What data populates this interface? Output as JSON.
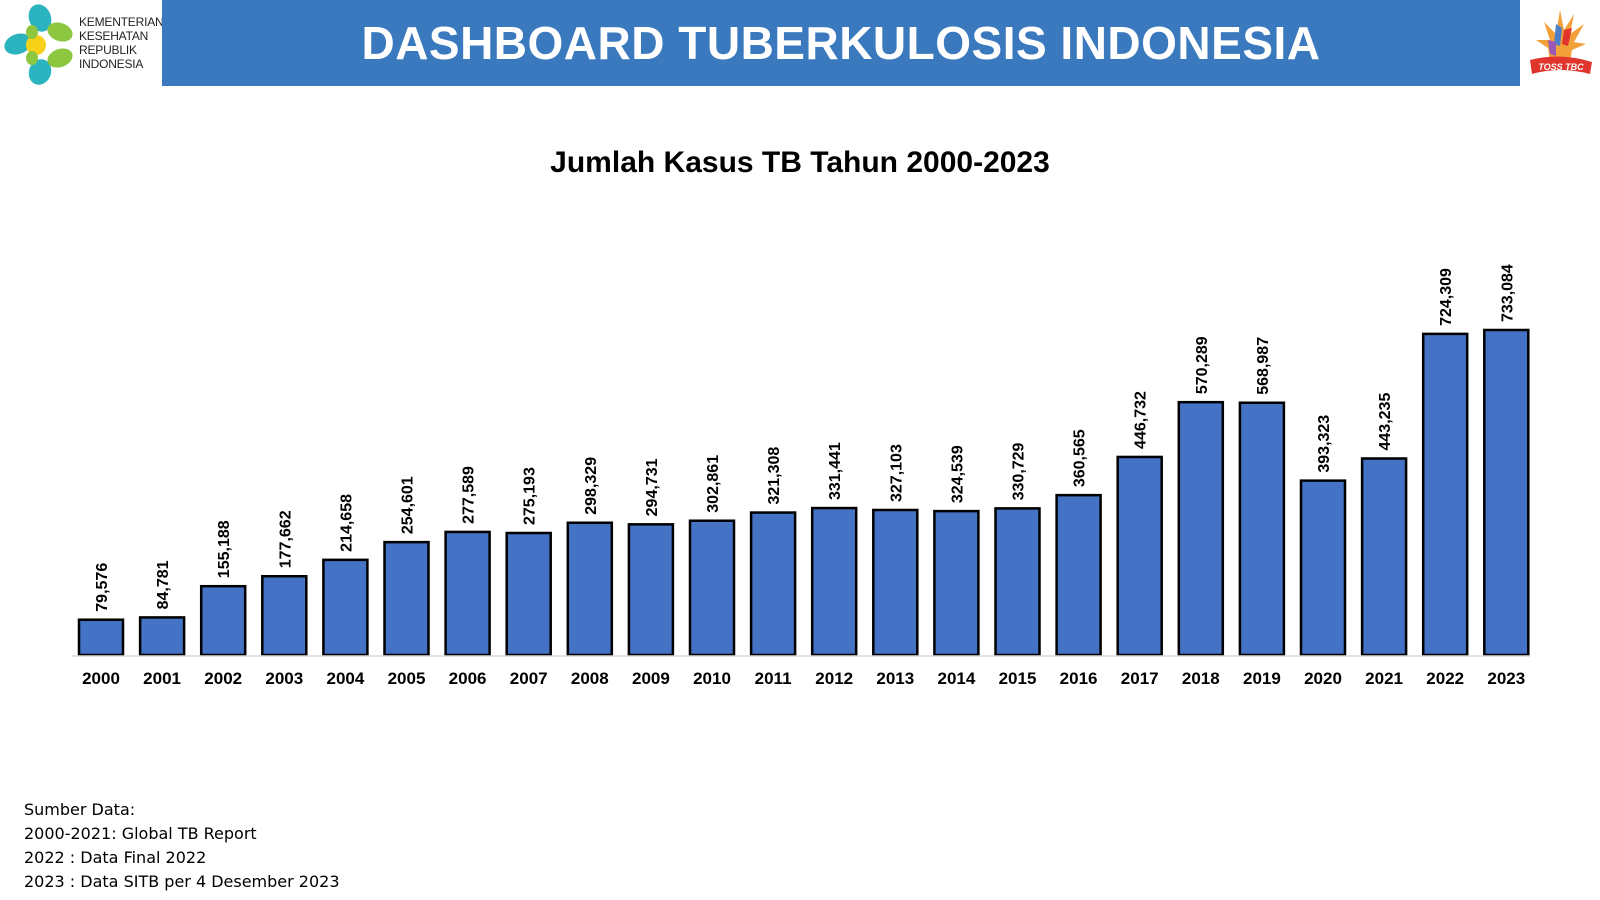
{
  "header": {
    "title": "DASHBOARD TUBERKULOSIS INDONESIA",
    "logo_left_lines": [
      "KEMENTERIAN",
      "KESEHATAN",
      "REPUBLIK",
      "INDONESIA"
    ],
    "logo_right_text": "TOSS TBC",
    "banner_color": "#3a79bd"
  },
  "colors": {
    "bar_fill": "#4472c4",
    "bar_stroke": "#000000",
    "logo_green": "#8dc63f",
    "logo_teal": "#2bb3c0",
    "logo_yellow": "#f7d117"
  },
  "chart_data": {
    "type": "bar",
    "title": "Jumlah Kasus TB Tahun 2000-2023",
    "xlabel": "",
    "ylabel": "",
    "ylim": [
      0,
      760000
    ],
    "grid": false,
    "categories": [
      "2000",
      "2001",
      "2002",
      "2003",
      "2004",
      "2005",
      "2006",
      "2007",
      "2008",
      "2009",
      "2010",
      "2011",
      "2012",
      "2013",
      "2014",
      "2015",
      "2016",
      "2017",
      "2018",
      "2019",
      "2020",
      "2021",
      "2022",
      "2023"
    ],
    "values": [
      79576,
      84781,
      155188,
      177662,
      214658,
      254601,
      277589,
      275193,
      298329,
      294731,
      302861,
      321308,
      331441,
      327103,
      324539,
      330729,
      360565,
      446732,
      570289,
      568987,
      393323,
      443235,
      724309,
      733084
    ],
    "data_labels": [
      "79,576",
      "84,781",
      "155,188",
      "177,662",
      "214,658",
      "254,601",
      "277,589",
      "275,193",
      "298,329",
      "294,731",
      "302,861",
      "321,308",
      "331,441",
      "327,103",
      "324,539",
      "330,729",
      "360,565",
      "446,732",
      "570,289",
      "568,987",
      "393,323",
      "443,235",
      "724,309",
      "733,084"
    ]
  },
  "source": {
    "heading": "Sumber Data:",
    "lines": [
      "2000-2021: Global TB Report",
      "2022 : Data Final 2022",
      "2023 : Data SITB per 4 Desember 2023"
    ]
  }
}
